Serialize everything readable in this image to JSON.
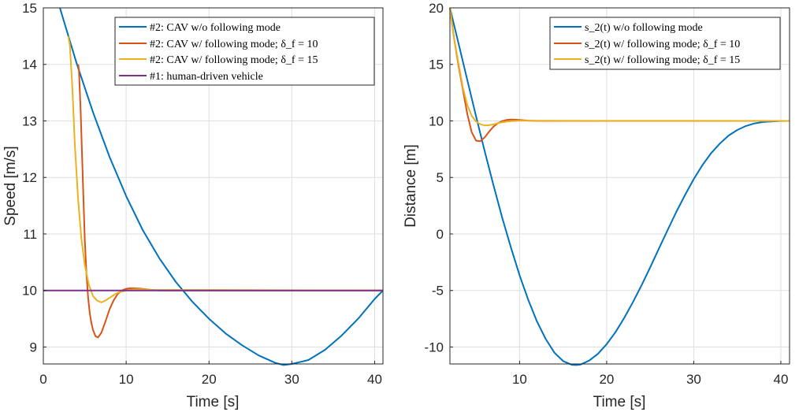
{
  "chart_data": [
    {
      "type": "line",
      "xlabel": "Time [s]",
      "ylabel": "Speed [m/s]",
      "xlim": [
        0,
        41
      ],
      "ylim": [
        8.7,
        15
      ],
      "xticks": [
        0,
        10,
        20,
        30,
        40
      ],
      "yticks": [
        9,
        10,
        11,
        12,
        13,
        14,
        15
      ],
      "grid": true,
      "legend_position": "top-right",
      "series": [
        {
          "name": "#2:  CAV  w/o following mode",
          "color": "#0072BD",
          "x": [
            2,
            4,
            6,
            8,
            10,
            12,
            14,
            16,
            18,
            20,
            22,
            24,
            26,
            28,
            29,
            30,
            32,
            34,
            36,
            38,
            40,
            41
          ],
          "y": [
            15,
            14.03,
            13.15,
            12.36,
            11.67,
            11.07,
            10.57,
            10.15,
            9.8,
            9.5,
            9.24,
            9.03,
            8.85,
            8.72,
            8.68,
            8.7,
            8.77,
            8.95,
            9.2,
            9.5,
            9.85,
            10
          ]
        },
        {
          "name": "#2:  CAV  w/ following mode; δ_f = 10",
          "color": "#D95319",
          "x": [
            4.2,
            4.3,
            4.5,
            4.8,
            5.0,
            5.2,
            5.4,
            5.6,
            5.8,
            6.0,
            6.3,
            6.6,
            7.0,
            7.5,
            8,
            8.5,
            9,
            9.5,
            10,
            10.5,
            11,
            12,
            13,
            14,
            15,
            41
          ],
          "y": [
            14.0,
            13.9,
            13.2,
            11.8,
            10.9,
            10.3,
            9.88,
            9.6,
            9.42,
            9.3,
            9.19,
            9.17,
            9.25,
            9.45,
            9.67,
            9.83,
            9.94,
            10.0,
            10.03,
            10.04,
            10.04,
            10.03,
            10.01,
            10.0,
            10.0,
            10.0
          ]
        },
        {
          "name": "#2:  CAV  w/ following mode; δ_f = 15",
          "color": "#EDB120",
          "x": [
            3,
            3.2,
            3.5,
            3.8,
            4.2,
            4.6,
            5,
            5.5,
            6,
            6.5,
            7,
            7.5,
            8,
            8.5,
            9,
            10,
            11,
            12,
            13,
            41
          ],
          "y": [
            14.5,
            14.35,
            13.6,
            12.6,
            11.6,
            10.9,
            10.45,
            10.1,
            9.9,
            9.82,
            9.79,
            9.82,
            9.87,
            9.92,
            9.96,
            10.0,
            10.02,
            10.02,
            10.01,
            10.0
          ]
        },
        {
          "name": "#1:  human-driven vehicle",
          "color": "#7E2F8E",
          "x": [
            0,
            41
          ],
          "y": [
            10,
            10
          ]
        }
      ]
    },
    {
      "type": "line",
      "xlabel": "Time [s]",
      "ylabel": "Distance [m]",
      "xlim": [
        2,
        41
      ],
      "ylim": [
        -11.5,
        20
      ],
      "xticks": [
        10,
        20,
        30,
        40
      ],
      "yticks": [
        -10,
        -5,
        0,
        5,
        10,
        15,
        20
      ],
      "grid": true,
      "legend_position": "top-right",
      "series": [
        {
          "name": "s_2(t) w/o following mode",
          "color": "#0072BD",
          "x": [
            2,
            3,
            4,
            5,
            6,
            7,
            8,
            9,
            10,
            11,
            12,
            13,
            14,
            15,
            16,
            16.5,
            17,
            18,
            19,
            20,
            21,
            22,
            23,
            24,
            25,
            26,
            27,
            28,
            29,
            30,
            31,
            32,
            33,
            34,
            35,
            36,
            37,
            38,
            39,
            40,
            41
          ],
          "y": [
            20,
            16.8,
            13.6,
            10.4,
            7.3,
            4.3,
            1.45,
            -1.2,
            -3.65,
            -5.85,
            -7.75,
            -9.3,
            -10.5,
            -11.25,
            -11.58,
            -11.6,
            -11.55,
            -11.2,
            -10.6,
            -9.75,
            -8.7,
            -7.45,
            -6.05,
            -4.55,
            -2.95,
            -1.3,
            0.35,
            1.95,
            3.45,
            4.85,
            6.1,
            7.15,
            8.0,
            8.7,
            9.2,
            9.55,
            9.78,
            9.9,
            9.96,
            9.99,
            10.0
          ]
        },
        {
          "name": "s_2(t) w/ following mode; δ_f = 10",
          "color": "#D95319",
          "x": [
            2,
            2.5,
            3,
            3.5,
            4,
            4.5,
            5,
            5.5,
            6,
            6.5,
            7,
            7.5,
            8,
            8.5,
            9,
            9.5,
            10,
            11,
            12,
            41
          ],
          "y": [
            20,
            17.2,
            14.8,
            12.7,
            10.6,
            9.0,
            8.25,
            8.2,
            8.55,
            9.05,
            9.5,
            9.8,
            9.98,
            10.08,
            10.12,
            10.11,
            10.08,
            10.03,
            10.0,
            10.0
          ]
        },
        {
          "name": "s_2(t) w/ following mode; δ_f = 15",
          "color": "#EDB120",
          "x": [
            2,
            2.5,
            3,
            3.5,
            4,
            4.5,
            5,
            5.5,
            6,
            6.5,
            7,
            7.5,
            8,
            8.5,
            9,
            10,
            11,
            12,
            41
          ],
          "y": [
            20,
            17.2,
            15,
            12.9,
            11.4,
            10.45,
            9.95,
            9.7,
            9.6,
            9.62,
            9.7,
            9.8,
            9.88,
            9.94,
            9.98,
            10.02,
            10.02,
            10.01,
            10.0
          ]
        }
      ]
    }
  ]
}
